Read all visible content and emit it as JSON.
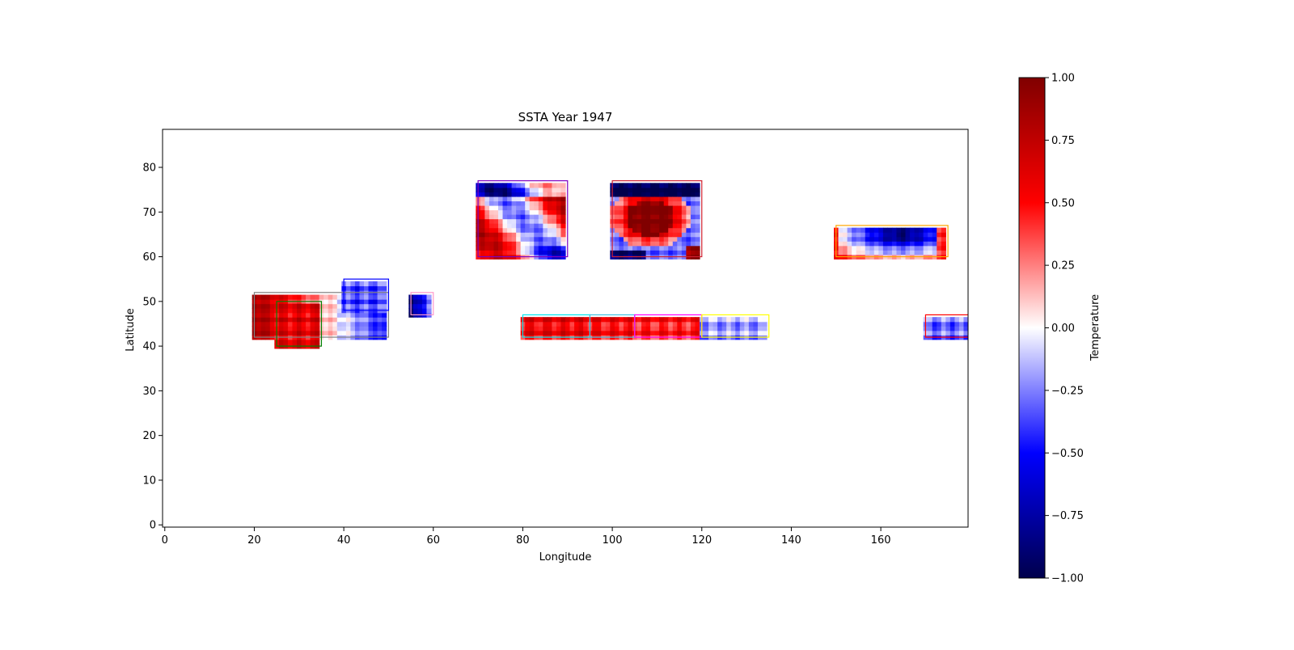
{
  "chart_data": {
    "type": "heatmap",
    "title": "SSTA Year 1947",
    "xlabel": "Longitude",
    "ylabel": "Latitude",
    "xlim": [
      -0.5,
      179.5
    ],
    "ylim": [
      -0.5,
      88.5
    ],
    "xticks": [
      0,
      20,
      40,
      60,
      80,
      100,
      120,
      140,
      160
    ],
    "yticks": [
      0,
      10,
      20,
      30,
      40,
      50,
      60,
      70,
      80
    ],
    "colorbar": {
      "label": "Temperature",
      "min": -1.0,
      "max": 1.0,
      "colormap": "seismic",
      "ticks": [
        "1.00",
        "0.75",
        "0.50",
        "0.25",
        "0.00",
        "−0.25",
        "−0.50",
        "−0.75",
        "−1.00"
      ],
      "tick_values": [
        1.0,
        0.75,
        0.5,
        0.25,
        0.0,
        -0.25,
        -0.5,
        -0.75,
        -1.0
      ]
    },
    "regions": [
      {
        "lon": [
          70,
          90
        ],
        "lat": [
          60,
          77
        ],
        "box_color": "#8000c0",
        "pattern": "swirl",
        "mean_anomaly": 0.3
      },
      {
        "lon": [
          100,
          120
        ],
        "lat": [
          60,
          77
        ],
        "box_color": "#d02030",
        "pattern": "core_warm_edge_cold",
        "mean_anomaly": 0.4
      },
      {
        "lon": [
          150,
          175
        ],
        "lat": [
          60,
          67
        ],
        "box_color": "#ffa500",
        "pattern": "cold_core",
        "mean_anomaly": -0.5
      },
      {
        "lon": [
          20,
          50
        ],
        "lat": [
          42,
          52
        ],
        "box_color": "#808080",
        "pattern": "west_warm_east_cold",
        "mean_anomaly": 0.0
      },
      {
        "lon": [
          25,
          35
        ],
        "lat": [
          40,
          50
        ],
        "box_color": "#008000",
        "pattern": "warm",
        "mean_anomaly": 0.6
      },
      {
        "lon": [
          40,
          50
        ],
        "lat": [
          48,
          55
        ],
        "box_color": "#0000ff",
        "pattern": "cold",
        "mean_anomaly": -0.35
      },
      {
        "lon": [
          55,
          60
        ],
        "lat": [
          47,
          52
        ],
        "box_color": "#ff99cc",
        "pattern": "strong_cold",
        "mean_anomaly": -0.8
      },
      {
        "lon": [
          80,
          95
        ],
        "lat": [
          42,
          47
        ],
        "box_color": "#00e5ee",
        "pattern": "warm",
        "mean_anomaly": 0.55
      },
      {
        "lon": [
          95,
          105
        ],
        "lat": [
          42,
          47
        ],
        "box_color": "#40c0e0",
        "pattern": "warm",
        "mean_anomaly": 0.5
      },
      {
        "lon": [
          105,
          120
        ],
        "lat": [
          42,
          47
        ],
        "box_color": "#ff00ff",
        "pattern": "warm",
        "mean_anomaly": 0.45
      },
      {
        "lon": [
          120,
          135
        ],
        "lat": [
          42,
          47
        ],
        "box_color": "#ffff00",
        "pattern": "cool",
        "mean_anomaly": -0.2
      },
      {
        "lon": [
          170,
          180
        ],
        "lat": [
          42,
          47
        ],
        "box_color": "#ff0000",
        "pattern": "cool",
        "mean_anomaly": -0.3
      }
    ]
  }
}
